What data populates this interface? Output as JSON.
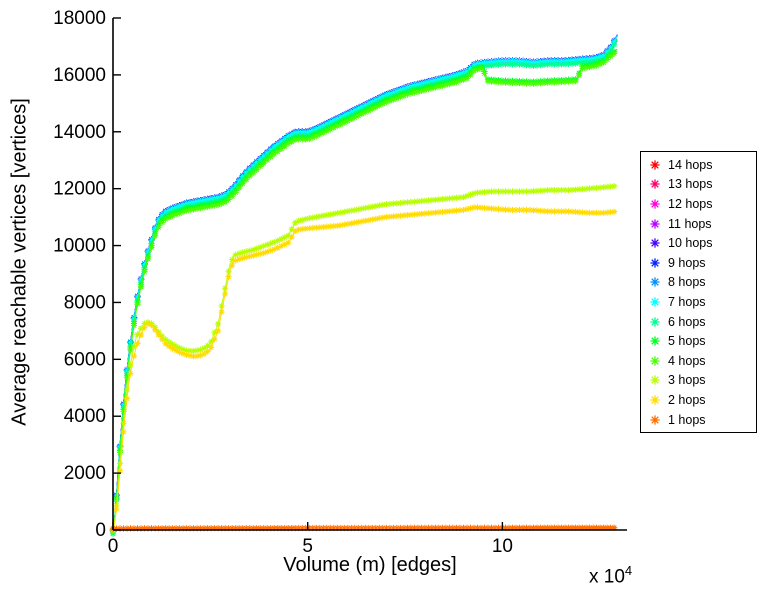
{
  "figure": {
    "background": "#FFFFFF"
  },
  "chart_data": {
    "type": "line",
    "title": "",
    "xlabel": "Volume (m) [edges]",
    "ylabel": "Average reachable vertices [vertices]",
    "x_exponent_prefix": "x 10",
    "x_exponent_sup": "4",
    "xlim": [
      0,
      13.2
    ],
    "ylim": [
      0,
      18000
    ],
    "xticks": [
      0,
      5,
      10
    ],
    "yticks": [
      0,
      2000,
      4000,
      6000,
      8000,
      10000,
      12000,
      14000,
      16000,
      18000
    ],
    "x_units": "x values in units of 10^4 edges",
    "grid": false,
    "marker": "asterisk",
    "legend_position": "right-outside",
    "curves": {
      "top": [
        [
          0,
          0
        ],
        [
          0.05,
          500
        ],
        [
          0.1,
          1400
        ],
        [
          0.15,
          2400
        ],
        [
          0.2,
          3300
        ],
        [
          0.3,
          4900
        ],
        [
          0.4,
          6100
        ],
        [
          0.5,
          7100
        ],
        [
          0.6,
          8000
        ],
        [
          0.7,
          8700
        ],
        [
          0.8,
          9300
        ],
        [
          0.9,
          9800
        ],
        [
          1.0,
          10250
        ],
        [
          1.1,
          10700
        ],
        [
          1.2,
          11000
        ],
        [
          1.35,
          11200
        ],
        [
          1.5,
          11300
        ],
        [
          1.7,
          11400
        ],
        [
          1.9,
          11500
        ],
        [
          2.1,
          11550
        ],
        [
          2.3,
          11600
        ],
        [
          2.5,
          11650
        ],
        [
          2.7,
          11700
        ],
        [
          2.9,
          11800
        ],
        [
          3.1,
          12050
        ],
        [
          3.3,
          12400
        ],
        [
          3.5,
          12700
        ],
        [
          3.7,
          12950
        ],
        [
          3.9,
          13200
        ],
        [
          4.1,
          13450
        ],
        [
          4.3,
          13650
        ],
        [
          4.5,
          13850
        ],
        [
          4.7,
          14000
        ],
        [
          5.0,
          14000
        ],
        [
          5.2,
          14100
        ],
        [
          5.5,
          14300
        ],
        [
          5.8,
          14500
        ],
        [
          6.1,
          14700
        ],
        [
          6.4,
          14900
        ],
        [
          6.7,
          15100
        ],
        [
          7.0,
          15300
        ],
        [
          7.3,
          15450
        ],
        [
          7.6,
          15600
        ],
        [
          7.9,
          15700
        ],
        [
          8.2,
          15800
        ],
        [
          8.5,
          15900
        ],
        [
          8.8,
          16000
        ],
        [
          9.1,
          16150
        ],
        [
          9.3,
          16400
        ],
        [
          9.6,
          16450
        ],
        [
          10.0,
          16500
        ],
        [
          10.4,
          16500
        ],
        [
          10.8,
          16450
        ],
        [
          11.2,
          16500
        ],
        [
          11.6,
          16500
        ],
        [
          12.0,
          16550
        ],
        [
          12.4,
          16600
        ],
        [
          12.6,
          16700
        ],
        [
          12.8,
          17000
        ],
        [
          12.95,
          17400
        ]
      ],
      "mid": [
        [
          0,
          0
        ],
        [
          0.05,
          450
        ],
        [
          0.1,
          1300
        ],
        [
          0.15,
          2250
        ],
        [
          0.2,
          3150
        ],
        [
          0.3,
          4700
        ],
        [
          0.4,
          5900
        ],
        [
          0.5,
          6900
        ],
        [
          0.6,
          7800
        ],
        [
          0.7,
          8500
        ],
        [
          0.8,
          9100
        ],
        [
          0.9,
          9600
        ],
        [
          1.0,
          10050
        ],
        [
          1.1,
          10500
        ],
        [
          1.2,
          10800
        ],
        [
          1.35,
          11000
        ],
        [
          1.5,
          11100
        ],
        [
          1.7,
          11200
        ],
        [
          1.9,
          11300
        ],
        [
          2.1,
          11350
        ],
        [
          2.3,
          11400
        ],
        [
          2.5,
          11450
        ],
        [
          2.7,
          11500
        ],
        [
          2.9,
          11600
        ],
        [
          3.1,
          11850
        ],
        [
          3.3,
          12200
        ],
        [
          3.5,
          12500
        ],
        [
          3.7,
          12750
        ],
        [
          3.9,
          13000
        ],
        [
          4.1,
          13250
        ],
        [
          4.3,
          13450
        ],
        [
          4.5,
          13650
        ],
        [
          4.7,
          13800
        ],
        [
          5.0,
          13800
        ],
        [
          5.2,
          13900
        ],
        [
          5.5,
          14100
        ],
        [
          5.8,
          14300
        ],
        [
          6.1,
          14500
        ],
        [
          6.4,
          14700
        ],
        [
          6.7,
          14900
        ],
        [
          7.0,
          15100
        ],
        [
          7.3,
          15250
        ],
        [
          7.6,
          15400
        ],
        [
          7.9,
          15500
        ],
        [
          8.2,
          15600
        ],
        [
          8.5,
          15700
        ],
        [
          8.8,
          15800
        ],
        [
          9.1,
          15950
        ],
        [
          9.3,
          16250
        ],
        [
          9.5,
          16300
        ],
        [
          9.6,
          15850
        ],
        [
          10.0,
          15800
        ],
        [
          10.4,
          15780
        ],
        [
          10.8,
          15760
        ],
        [
          11.2,
          15800
        ],
        [
          11.6,
          15820
        ],
        [
          11.9,
          15850
        ],
        [
          12.05,
          16300
        ],
        [
          12.4,
          16380
        ],
        [
          12.6,
          16500
        ],
        [
          12.8,
          16750
        ],
        [
          12.95,
          16900
        ]
      ],
      "hops3": [
        [
          0,
          0
        ],
        [
          0.05,
          350
        ],
        [
          0.1,
          1000
        ],
        [
          0.15,
          1800
        ],
        [
          0.2,
          2700
        ],
        [
          0.3,
          4200
        ],
        [
          0.4,
          5400
        ],
        [
          0.5,
          6200
        ],
        [
          0.6,
          6800
        ],
        [
          0.7,
          7050
        ],
        [
          0.8,
          7250
        ],
        [
          0.9,
          7300
        ],
        [
          1.0,
          7250
        ],
        [
          1.1,
          7100
        ],
        [
          1.2,
          6900
        ],
        [
          1.35,
          6700
        ],
        [
          1.5,
          6550
        ],
        [
          1.7,
          6400
        ],
        [
          1.9,
          6300
        ],
        [
          2.1,
          6300
        ],
        [
          2.3,
          6350
        ],
        [
          2.5,
          6550
        ],
        [
          2.7,
          7250
        ],
        [
          2.85,
          8300
        ],
        [
          3.0,
          9300
        ],
        [
          3.1,
          9650
        ],
        [
          3.3,
          9750
        ],
        [
          3.6,
          9850
        ],
        [
          3.9,
          10000
        ],
        [
          4.2,
          10150
        ],
        [
          4.5,
          10350
        ],
        [
          4.7,
          10850
        ],
        [
          5.0,
          10950
        ],
        [
          5.4,
          11050
        ],
        [
          5.8,
          11150
        ],
        [
          6.2,
          11250
        ],
        [
          6.6,
          11350
        ],
        [
          7.0,
          11450
        ],
        [
          7.4,
          11500
        ],
        [
          7.8,
          11550
        ],
        [
          8.2,
          11600
        ],
        [
          8.6,
          11650
        ],
        [
          9.0,
          11700
        ],
        [
          9.3,
          11850
        ],
        [
          9.7,
          11900
        ],
        [
          10.2,
          11900
        ],
        [
          10.7,
          11900
        ],
        [
          11.2,
          11950
        ],
        [
          11.7,
          11950
        ],
        [
          12.2,
          12000
        ],
        [
          12.6,
          12050
        ],
        [
          12.95,
          12100
        ]
      ],
      "hops2": [
        [
          0,
          0
        ],
        [
          0.05,
          300
        ],
        [
          0.1,
          850
        ],
        [
          0.15,
          1600
        ],
        [
          0.2,
          2400
        ],
        [
          0.3,
          3900
        ],
        [
          0.4,
          5100
        ],
        [
          0.5,
          5900
        ],
        [
          0.6,
          6450
        ],
        [
          0.7,
          6800
        ],
        [
          0.8,
          7100
        ],
        [
          0.9,
          7250
        ],
        [
          1.0,
          7200
        ],
        [
          1.1,
          7000
        ],
        [
          1.2,
          6800
        ],
        [
          1.35,
          6550
        ],
        [
          1.5,
          6400
        ],
        [
          1.7,
          6250
        ],
        [
          1.9,
          6150
        ],
        [
          2.1,
          6100
        ],
        [
          2.3,
          6150
        ],
        [
          2.5,
          6350
        ],
        [
          2.7,
          7000
        ],
        [
          2.85,
          8100
        ],
        [
          3.0,
          9100
        ],
        [
          3.1,
          9450
        ],
        [
          3.3,
          9550
        ],
        [
          3.6,
          9650
        ],
        [
          3.9,
          9750
        ],
        [
          4.2,
          9900
        ],
        [
          4.5,
          10100
        ],
        [
          4.7,
          10550
        ],
        [
          5.0,
          10600
        ],
        [
          5.4,
          10650
        ],
        [
          5.8,
          10700
        ],
        [
          6.2,
          10800
        ],
        [
          6.6,
          10900
        ],
        [
          7.0,
          11000
        ],
        [
          7.4,
          11050
        ],
        [
          7.8,
          11100
        ],
        [
          8.2,
          11150
        ],
        [
          8.6,
          11200
        ],
        [
          9.0,
          11250
        ],
        [
          9.3,
          11350
        ],
        [
          9.7,
          11300
        ],
        [
          10.2,
          11250
        ],
        [
          10.7,
          11250
        ],
        [
          11.2,
          11200
        ],
        [
          11.7,
          11200
        ],
        [
          12.2,
          11150
        ],
        [
          12.6,
          11150
        ],
        [
          12.95,
          11200
        ]
      ],
      "hops1": [
        [
          0,
          50
        ],
        [
          1,
          60
        ],
        [
          2,
          60
        ],
        [
          3,
          65
        ],
        [
          4,
          65
        ],
        [
          5,
          70
        ],
        [
          6,
          70
        ],
        [
          7,
          70
        ],
        [
          8,
          75
        ],
        [
          9,
          75
        ],
        [
          10,
          75
        ],
        [
          11,
          80
        ],
        [
          12,
          80
        ],
        [
          12.95,
          80
        ]
      ]
    },
    "series": [
      {
        "label": "14 hops",
        "color": "#FF0000",
        "curve": "top",
        "offset": -8
      },
      {
        "label": "13 hops",
        "color": "#FF006E",
        "curve": "top",
        "offset": -16
      },
      {
        "label": "12 hops",
        "color": "#FF00DB",
        "curve": "top",
        "offset": -24
      },
      {
        "label": "11 hops",
        "color": "#B600FF",
        "curve": "top",
        "offset": 4
      },
      {
        "label": "10 hops",
        "color": "#4900FF",
        "curve": "top",
        "offset": 12
      },
      {
        "label": "9 hops",
        "color": "#0025FF",
        "curve": "top",
        "offset": 4
      },
      {
        "label": "8 hops",
        "color": "#0092FF",
        "curve": "top",
        "offset": -6
      },
      {
        "label": "7 hops",
        "color": "#00FFFF",
        "curve": "top",
        "offset": -20
      },
      {
        "label": "6 hops",
        "color": "#00FF92",
        "curve": "top",
        "offset": -130
      },
      {
        "label": "5 hops",
        "color": "#00FF25",
        "curve": "mid",
        "offset": 0
      },
      {
        "label": "4 hops",
        "color": "#49FF00",
        "curve": "mid",
        "offset": -70
      },
      {
        "label": "3 hops",
        "color": "#B6FF00",
        "curve": "hops3",
        "offset": 0
      },
      {
        "label": "2 hops",
        "color": "#FFDB00",
        "curve": "hops2",
        "offset": 0
      },
      {
        "label": "1 hops",
        "color": "#FF6E00",
        "curve": "hops1",
        "offset": 0
      }
    ]
  }
}
